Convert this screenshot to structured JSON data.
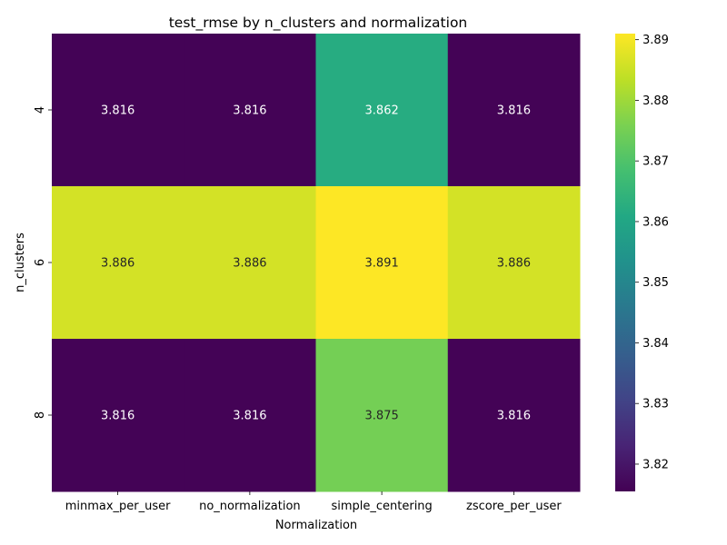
{
  "chart_data": {
    "type": "heatmap",
    "title": "test_rmse by n_clusters and normalization",
    "xlabel": "Normalization",
    "ylabel": "n_clusters",
    "x_categories": [
      "minmax_per_user",
      "no_normalization",
      "simple_centering",
      "zscore_per_user"
    ],
    "y_categories": [
      "4",
      "6",
      "8"
    ],
    "values": [
      [
        3.816,
        3.816,
        3.862,
        3.816
      ],
      [
        3.886,
        3.886,
        3.891,
        3.886
      ],
      [
        3.816,
        3.816,
        3.875,
        3.816
      ]
    ],
    "cell_labels": [
      [
        "3.816",
        "3.816",
        "3.862",
        "3.816"
      ],
      [
        "3.886",
        "3.886",
        "3.891",
        "3.886"
      ],
      [
        "3.816",
        "3.816",
        "3.875",
        "3.816"
      ]
    ],
    "colormap": "viridis",
    "color_range": [
      3.8155,
      3.891
    ],
    "colorbar_ticks": [
      "3.82",
      "3.83",
      "3.84",
      "3.85",
      "3.86",
      "3.87",
      "3.88",
      "3.89"
    ],
    "colors": {
      "low": "#440154",
      "high": "#fde725",
      "text_dark": "#262626",
      "text_light": "#ffffff"
    }
  }
}
